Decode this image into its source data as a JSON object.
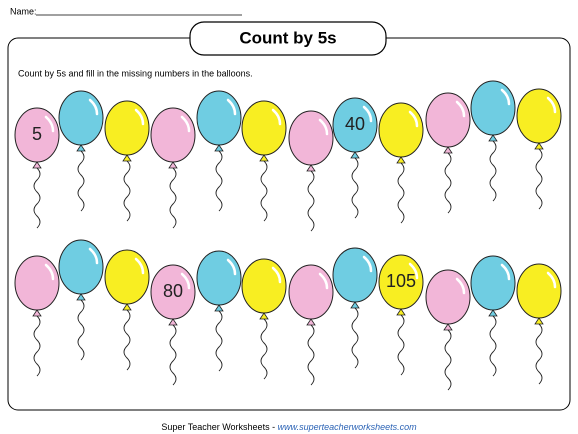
{
  "header": {
    "name_label": "Name:",
    "title": "Count by 5s"
  },
  "instructions": "Count by 5s and fill in the missing numbers in the balloons.",
  "balloon_labels": [
    "5",
    "40",
    "80",
    "105"
  ],
  "footer": {
    "text": "Super Teacher Worksheets - ",
    "link": "www.superteacherworksheets.com"
  }
}
